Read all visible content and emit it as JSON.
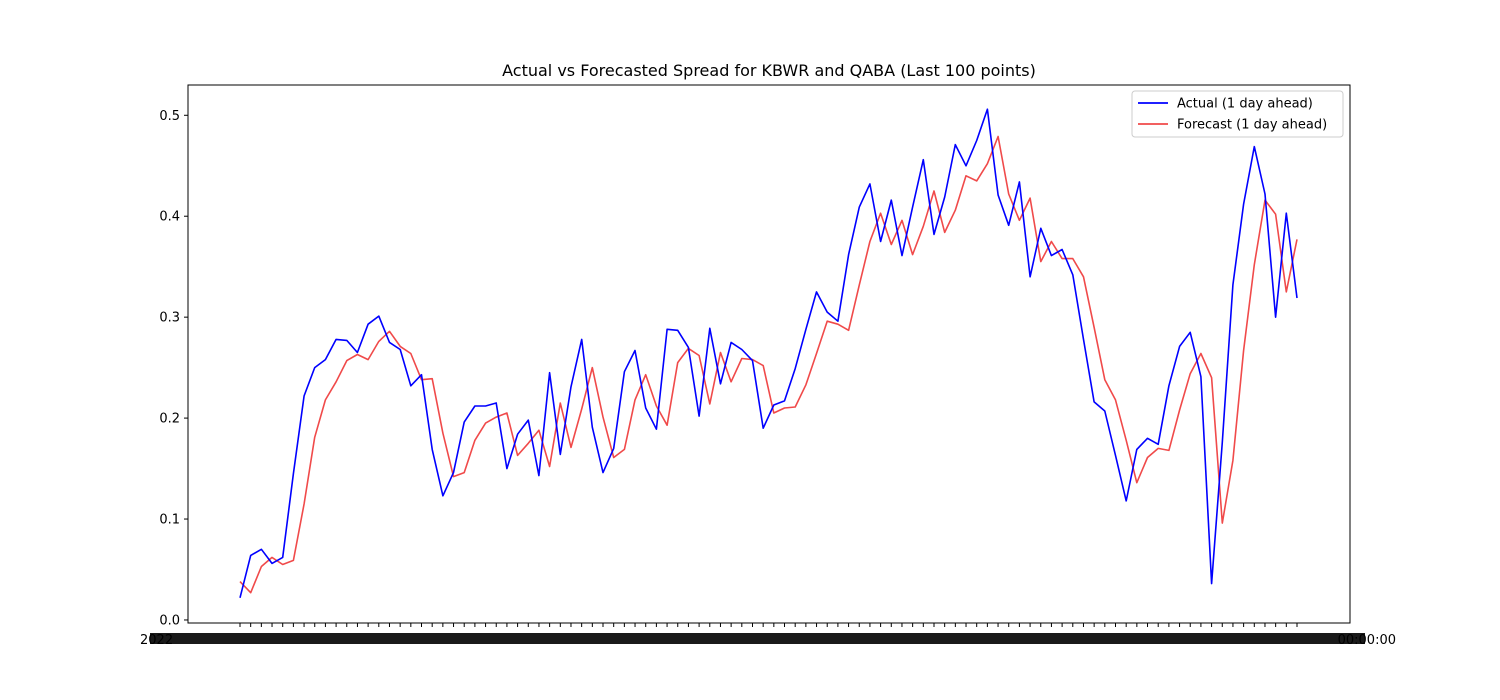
{
  "chart_data": {
    "type": "line",
    "title": "Actual vs Forecasted Spread for KBWR and QABA (Last 100 points)",
    "xlabel": "",
    "ylabel": "",
    "ylim": [
      -0.003,
      0.53
    ],
    "yticks": [
      0.0,
      0.1,
      0.2,
      0.3,
      0.4,
      0.5
    ],
    "ytick_labels": [
      "0.0",
      "0.1",
      "0.2",
      "0.3",
      "0.4",
      "0.5"
    ],
    "x_tick_note": "100 overlapping date tick labels (illegible)",
    "x_first_label": "2022",
    "x_last_label": "00:00:00",
    "legend_position": "upper right",
    "grid": false,
    "series": [
      {
        "name": "Actual (1 day ahead)",
        "color": "#0000ff",
        "values": [
          0.022,
          0.064,
          0.07,
          0.056,
          0.062,
          0.145,
          0.222,
          0.25,
          0.258,
          0.278,
          0.277,
          0.265,
          0.293,
          0.301,
          0.275,
          0.268,
          0.232,
          0.243,
          0.169,
          0.123,
          0.146,
          0.196,
          0.212,
          0.212,
          0.215,
          0.15,
          0.184,
          0.198,
          0.143,
          0.245,
          0.164,
          0.231,
          0.278,
          0.191,
          0.146,
          0.17,
          0.246,
          0.267,
          0.21,
          0.189,
          0.288,
          0.287,
          0.27,
          0.202,
          0.289,
          0.234,
          0.275,
          0.268,
          0.257,
          0.19,
          0.213,
          0.217,
          0.249,
          0.288,
          0.325,
          0.305,
          0.296,
          0.362,
          0.409,
          0.432,
          0.375,
          0.416,
          0.361,
          0.409,
          0.456,
          0.382,
          0.419,
          0.471,
          0.45,
          0.475,
          0.506,
          0.421,
          0.391,
          0.434,
          0.34,
          0.388,
          0.361,
          0.367,
          0.342,
          0.278,
          0.216,
          0.207,
          0.163,
          0.118,
          0.169,
          0.18,
          0.174,
          0.232,
          0.271,
          0.285,
          0.241,
          0.036,
          0.176,
          0.332,
          0.412,
          0.469,
          0.422,
          0.3,
          0.403,
          0.319
        ]
      },
      {
        "name": "Forecast (1 day ahead)",
        "color": "#f04a4a",
        "values": [
          0.038,
          0.027,
          0.053,
          0.062,
          0.055,
          0.059,
          0.115,
          0.181,
          0.218,
          0.236,
          0.257,
          0.263,
          0.258,
          0.276,
          0.286,
          0.271,
          0.264,
          0.238,
          0.239,
          0.185,
          0.142,
          0.146,
          0.178,
          0.195,
          0.201,
          0.205,
          0.163,
          0.175,
          0.188,
          0.152,
          0.215,
          0.171,
          0.209,
          0.25,
          0.201,
          0.161,
          0.169,
          0.218,
          0.243,
          0.212,
          0.193,
          0.255,
          0.269,
          0.262,
          0.214,
          0.265,
          0.236,
          0.259,
          0.258,
          0.252,
          0.205,
          0.21,
          0.211,
          0.233,
          0.264,
          0.296,
          0.293,
          0.287,
          0.332,
          0.375,
          0.403,
          0.372,
          0.396,
          0.362,
          0.39,
          0.425,
          0.384,
          0.406,
          0.44,
          0.435,
          0.452,
          0.479,
          0.422,
          0.396,
          0.418,
          0.355,
          0.375,
          0.358,
          0.358,
          0.34,
          0.29,
          0.238,
          0.218,
          0.178,
          0.136,
          0.161,
          0.17,
          0.168,
          0.208,
          0.244,
          0.264,
          0.24,
          0.096,
          0.158,
          0.267,
          0.352,
          0.416,
          0.402,
          0.325,
          0.377
        ]
      }
    ]
  }
}
